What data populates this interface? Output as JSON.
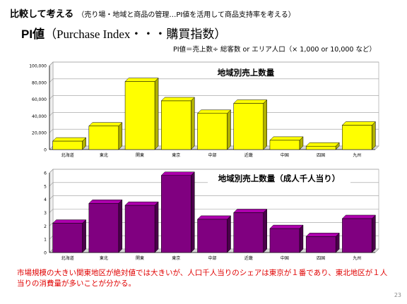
{
  "header": {
    "title_main": "比較して考える",
    "title_sub": "（売り場・地域と商品の管理…PI値を活用して商品支持率を考える）"
  },
  "pi": {
    "label": "PI値",
    "rest": "（Purchase Index・・・購買指数）"
  },
  "formula": "PI値＝売上数÷ 総客数 or エリア人口（× 1,000 or 10,000 など）",
  "colors": {
    "chart1_bar": "#ffff00",
    "chart1_side": "#b0b000",
    "chart2_bar": "#800080",
    "chart2_side": "#4a004a",
    "note": "#e00000"
  },
  "chart_data": [
    {
      "type": "bar",
      "title": "地域別売上数量",
      "categories": [
        "北海道",
        "東北",
        "関東",
        "東京",
        "中部",
        "近畿",
        "中国",
        "四国",
        "九州"
      ],
      "values": [
        10000,
        28000,
        81000,
        58000,
        43000,
        55000,
        11000,
        4000,
        29000
      ],
      "ylim": [
        0,
        100000
      ],
      "yticks": [
        "0",
        "20,000",
        "40,000",
        "60,000",
        "80,000",
        "100,000"
      ],
      "grid": true,
      "xlabel": "",
      "ylabel": ""
    },
    {
      "type": "bar",
      "title": "地域別売上数量（成人千人当り）",
      "categories": [
        "北海道",
        "東北",
        "関東",
        "東京",
        "中部",
        "近畿",
        "中国",
        "四国",
        "九州"
      ],
      "values": [
        2.2,
        3.7,
        3.55,
        5.8,
        2.5,
        3.0,
        1.8,
        1.2,
        2.55
      ],
      "ylim": [
        0,
        6
      ],
      "yticks": [
        "0",
        "1",
        "2",
        "3",
        "4",
        "5",
        "6"
      ],
      "grid": true,
      "xlabel": "",
      "ylabel": ""
    }
  ],
  "note": "市場規模の大きい関東地区が絶対値では大きいが、人口千人当りのシェアは東京が１番であり、東北地区が１人当りの消費量が多いことが分かる。",
  "page_number": "23"
}
